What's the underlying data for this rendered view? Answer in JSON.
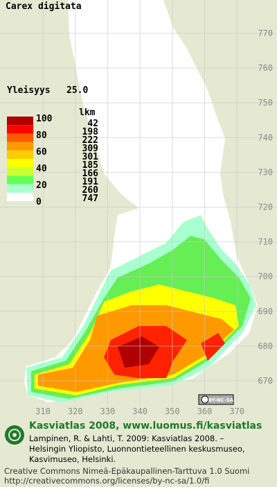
{
  "title": "Carex digitata",
  "frequency": {
    "label": "Yleisyys",
    "value": "25.0"
  },
  "legend": {
    "percent_labels": [
      100,
      80,
      60,
      40,
      20,
      0
    ],
    "count_header": "lkm",
    "counts": [
      42,
      198,
      222,
      309,
      301,
      185,
      166,
      191,
      260,
      747
    ]
  },
  "grid": {
    "y_labels": [
      770,
      760,
      750,
      740,
      730,
      720,
      710,
      700,
      690,
      680,
      670
    ],
    "x_labels": [
      310,
      320,
      330,
      340,
      350,
      360,
      370
    ]
  },
  "license_badge": "BY-NC-SA",
  "footer": {
    "heading": "Kasviatlas 2008, www.luomus.fi/kasviatlas",
    "citation": [
      "Lampinen, R. & Lahti, T. 2009: Kasviatlas 2008. –",
      "Helsingin Yliopisto, Luonnontieteellinen keskusmuseo,",
      "Kasvimuseo, Helsinki."
    ],
    "license": "Creative Commons Nimeä-Epäkaupallinen-Tarttuva 1.0 Suomi",
    "url": "http://creativecommons.org/licenses/by-nc-sa/1.0/fi"
  }
}
